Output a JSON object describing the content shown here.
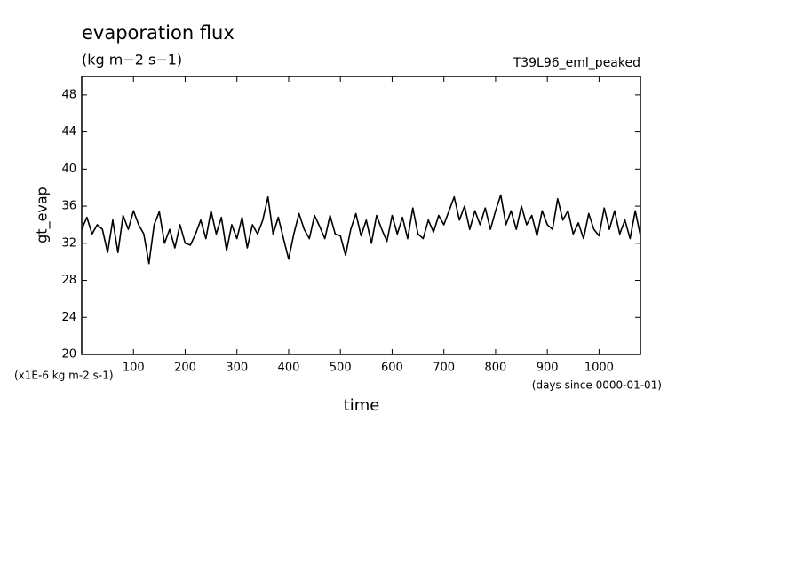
{
  "chart_data": {
    "type": "line",
    "title": "evaporation flux",
    "subtitle": "(kg m−2 s−1)",
    "annotation": "T39L96_eml_peaked",
    "y_label": "gt_evap",
    "x_label": "time",
    "y_units": "(x1E-6 kg m-2 s-1)",
    "x_units": "(days since 0000-01-01)",
    "color": "#000000",
    "x": [
      0,
      10,
      20,
      30,
      40,
      50,
      60,
      70,
      80,
      90,
      100,
      110,
      120,
      130,
      140,
      150,
      160,
      170,
      180,
      190,
      200,
      210,
      220,
      230,
      240,
      250,
      260,
      270,
      280,
      290,
      300,
      310,
      320,
      330,
      340,
      350,
      360,
      370,
      380,
      390,
      400,
      410,
      420,
      430,
      440,
      450,
      460,
      470,
      480,
      490,
      500,
      510,
      520,
      530,
      540,
      550,
      560,
      570,
      580,
      590,
      600,
      610,
      620,
      630,
      640,
      650,
      660,
      670,
      680,
      690,
      700,
      710,
      720,
      730,
      740,
      750,
      760,
      770,
      780,
      790,
      800,
      810,
      820,
      830,
      840,
      850,
      860,
      870,
      880,
      890,
      900,
      910,
      920,
      930,
      940,
      950,
      960,
      970,
      980,
      990,
      1000,
      1010,
      1020,
      1030,
      1040,
      1050,
      1060,
      1070,
      1080
    ],
    "values": [
      33.5,
      34.8,
      33,
      34,
      33.5,
      31,
      34.5,
      31,
      35,
      33.5,
      35.5,
      34,
      33,
      29.8,
      34,
      35.4,
      32,
      33.5,
      31.5,
      34,
      32,
      31.8,
      33,
      34.5,
      32.5,
      35.5,
      33,
      34.8,
      31.2,
      34,
      32.5,
      34.8,
      31.5,
      34,
      33,
      34.5,
      37,
      33,
      34.8,
      32.5,
      30.3,
      33,
      35.2,
      33.5,
      32.5,
      35,
      33.8,
      32.5,
      35,
      33,
      32.8,
      30.7,
      33.5,
      35.2,
      32.8,
      34.5,
      32,
      35,
      33.5,
      32.2,
      35,
      33,
      34.8,
      32.5,
      35.8,
      33,
      32.5,
      34.5,
      33.2,
      35,
      34,
      35.5,
      37,
      34.5,
      36,
      33.5,
      35.5,
      34,
      35.8,
      33.5,
      35.5,
      37.2,
      34,
      35.5,
      33.5,
      36,
      34,
      35,
      32.8,
      35.5,
      34,
      33.5,
      36.8,
      34.5,
      35.5,
      33,
      34.2,
      32.5,
      35.2,
      33.5,
      32.8,
      35.8,
      33.5,
      35.5,
      33,
      34.5,
      32.5,
      35.5,
      32.8
    ],
    "xlim": [
      0,
      1080
    ],
    "ylim": [
      20,
      50
    ],
    "xticks": [
      100,
      200,
      300,
      400,
      500,
      600,
      700,
      800,
      900,
      1000
    ],
    "yticks": [
      20,
      24,
      28,
      32,
      36,
      40,
      44,
      48
    ]
  }
}
